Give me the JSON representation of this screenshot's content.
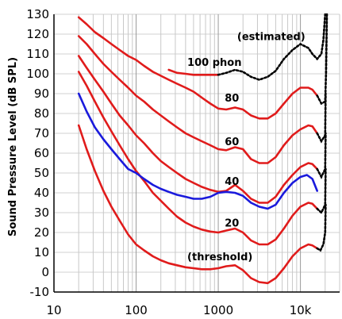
{
  "chart_data": {
    "type": "line",
    "title": "",
    "xlabel": "",
    "ylabel": "Sound Pressure Level (dB SPL)",
    "xscale": "log",
    "xlim": [
      10,
      30000
    ],
    "ylim": [
      -10,
      130
    ],
    "x_ticks": [
      10,
      100,
      1000,
      10000
    ],
    "x_tick_labels": [
      "10",
      "100",
      "1000",
      "10k"
    ],
    "y_ticks": [
      -10,
      0,
      10,
      20,
      30,
      40,
      50,
      60,
      70,
      80,
      90,
      100,
      110,
      120,
      130
    ],
    "grid": "log-x minor lines and horizontal lines every 10 dB",
    "colors": {
      "contours": "#e01b1b",
      "reference": "#1a1adc",
      "estimated": "#000000"
    },
    "series": [
      {
        "label": "(threshold)",
        "style": "solid",
        "color": "#e01b1b",
        "points": [
          [
            20,
            74
          ],
          [
            25,
            62
          ],
          [
            31.5,
            51
          ],
          [
            40,
            41
          ],
          [
            50,
            33
          ],
          [
            63,
            26
          ],
          [
            80,
            19
          ],
          [
            100,
            14
          ],
          [
            125,
            11
          ],
          [
            160,
            8
          ],
          [
            200,
            6
          ],
          [
            250,
            4.5
          ],
          [
            315,
            3.5
          ],
          [
            400,
            2.5
          ],
          [
            500,
            2
          ],
          [
            630,
            1.5
          ],
          [
            800,
            1.5
          ],
          [
            1000,
            2
          ],
          [
            1250,
            3
          ],
          [
            1600,
            3.5
          ],
          [
            2000,
            1
          ],
          [
            2500,
            -3
          ],
          [
            3150,
            -5
          ],
          [
            4000,
            -5.5
          ],
          [
            5000,
            -3
          ],
          [
            6300,
            2
          ],
          [
            8000,
            8
          ],
          [
            10000,
            12
          ],
          [
            12500,
            14
          ],
          [
            14000,
            13.5
          ],
          [
            16000,
            12
          ]
        ]
      },
      {
        "label": "20",
        "style": "solid",
        "color": "#e01b1b",
        "points": [
          [
            20,
            101
          ],
          [
            25,
            94
          ],
          [
            31.5,
            86
          ],
          [
            40,
            78
          ],
          [
            50,
            71
          ],
          [
            63,
            64
          ],
          [
            80,
            57
          ],
          [
            100,
            51
          ],
          [
            125,
            46
          ],
          [
            160,
            40
          ],
          [
            200,
            36
          ],
          [
            250,
            32
          ],
          [
            315,
            28
          ],
          [
            400,
            25
          ],
          [
            500,
            23
          ],
          [
            630,
            21.5
          ],
          [
            800,
            20.5
          ],
          [
            1000,
            20
          ],
          [
            1250,
            21
          ],
          [
            1600,
            22
          ],
          [
            2000,
            20
          ],
          [
            2500,
            16
          ],
          [
            3150,
            14
          ],
          [
            4000,
            14
          ],
          [
            5000,
            16.5
          ],
          [
            6300,
            22
          ],
          [
            8000,
            28.5
          ],
          [
            10000,
            33
          ],
          [
            12500,
            35
          ],
          [
            14000,
            34.5
          ],
          [
            16000,
            32
          ]
        ]
      },
      {
        "label": "40",
        "style": "solid",
        "color": "#e01b1b",
        "points": [
          [
            20,
            109
          ],
          [
            25,
            103
          ],
          [
            31.5,
            97
          ],
          [
            40,
            91
          ],
          [
            50,
            85
          ],
          [
            63,
            79
          ],
          [
            80,
            74
          ],
          [
            100,
            69
          ],
          [
            125,
            65
          ],
          [
            160,
            60
          ],
          [
            200,
            56
          ],
          [
            250,
            53
          ],
          [
            315,
            50
          ],
          [
            400,
            47
          ],
          [
            500,
            45
          ],
          [
            630,
            43
          ],
          [
            800,
            41.5
          ],
          [
            1000,
            40.5
          ],
          [
            1250,
            41
          ],
          [
            1600,
            44
          ],
          [
            2000,
            41
          ],
          [
            2500,
            37
          ],
          [
            3150,
            35
          ],
          [
            4000,
            35
          ],
          [
            5000,
            38
          ],
          [
            6300,
            44
          ],
          [
            8000,
            49
          ],
          [
            10000,
            53
          ],
          [
            12500,
            55
          ],
          [
            14000,
            54.5
          ],
          [
            16000,
            52
          ]
        ]
      },
      {
        "label": "60",
        "style": "solid",
        "color": "#e01b1b",
        "points": [
          [
            20,
            119
          ],
          [
            25,
            115
          ],
          [
            31.5,
            110
          ],
          [
            40,
            105
          ],
          [
            50,
            101
          ],
          [
            63,
            97
          ],
          [
            80,
            93
          ],
          [
            100,
            89
          ],
          [
            125,
            86
          ],
          [
            160,
            82
          ],
          [
            200,
            79
          ],
          [
            250,
            76
          ],
          [
            315,
            73
          ],
          [
            400,
            70
          ],
          [
            500,
            68
          ],
          [
            630,
            66
          ],
          [
            800,
            64
          ],
          [
            1000,
            62
          ],
          [
            1250,
            61.5
          ],
          [
            1600,
            63
          ],
          [
            2000,
            62
          ],
          [
            2500,
            57
          ],
          [
            3150,
            55
          ],
          [
            4000,
            55
          ],
          [
            5000,
            58
          ],
          [
            6300,
            64
          ],
          [
            8000,
            69
          ],
          [
            10000,
            72
          ],
          [
            12500,
            74
          ],
          [
            14000,
            73.5
          ],
          [
            16000,
            70
          ]
        ]
      },
      {
        "label": "80",
        "style": "solid",
        "color": "#e01b1b",
        "points": [
          [
            20,
            128.5
          ],
          [
            25,
            125
          ],
          [
            31.5,
            121
          ],
          [
            40,
            118
          ],
          [
            50,
            115
          ],
          [
            63,
            112
          ],
          [
            80,
            109
          ],
          [
            100,
            107
          ],
          [
            125,
            104
          ],
          [
            160,
            101
          ],
          [
            200,
            99
          ],
          [
            250,
            97
          ],
          [
            315,
            95
          ],
          [
            400,
            93
          ],
          [
            500,
            91
          ],
          [
            630,
            88
          ],
          [
            800,
            85
          ],
          [
            1000,
            82.5
          ],
          [
            1250,
            82
          ],
          [
            1600,
            83
          ],
          [
            2000,
            82
          ],
          [
            2500,
            79
          ],
          [
            3150,
            77.5
          ],
          [
            4000,
            77.5
          ],
          [
            5000,
            80
          ],
          [
            6300,
            85
          ],
          [
            8000,
            90
          ],
          [
            10000,
            93
          ],
          [
            12500,
            93
          ],
          [
            14000,
            92
          ],
          [
            16000,
            89
          ]
        ]
      },
      {
        "label": "100 phon",
        "style": "solid",
        "color": "#e01b1b",
        "points": [
          [
            250,
            102
          ],
          [
            315,
            100.5
          ],
          [
            400,
            100
          ],
          [
            500,
            99.5
          ],
          [
            630,
            99.5
          ],
          [
            800,
            99.5
          ],
          [
            1000,
            99.5
          ]
        ]
      },
      {
        "label": "(estimated)",
        "style": "dotted",
        "color": "#000000",
        "points": [
          [
            1000,
            99.5
          ],
          [
            1250,
            100.5
          ],
          [
            1600,
            102
          ],
          [
            2000,
            101
          ],
          [
            2500,
            98.5
          ],
          [
            3150,
            97
          ],
          [
            4000,
            98.5
          ],
          [
            5000,
            101.5
          ],
          [
            6300,
            107.5
          ],
          [
            8000,
            112
          ],
          [
            10000,
            115
          ],
          [
            12500,
            113
          ],
          [
            14000,
            110
          ],
          [
            16000,
            107.5
          ],
          [
            18000,
            110
          ],
          [
            19000,
            117
          ],
          [
            20000,
            130
          ]
        ]
      },
      {
        "label": "",
        "style": "dotted",
        "color": "#000000",
        "points": [
          [
            16000,
            89
          ],
          [
            18000,
            85
          ],
          [
            20000,
            86
          ],
          [
            20500,
            100
          ],
          [
            21000,
            130
          ]
        ]
      },
      {
        "label": "",
        "style": "dotted",
        "color": "#000000",
        "points": [
          [
            16000,
            70
          ],
          [
            18000,
            66
          ],
          [
            20000,
            69
          ],
          [
            20300,
            90
          ]
        ]
      },
      {
        "label": "",
        "style": "dotted",
        "color": "#000000",
        "points": [
          [
            16000,
            52
          ],
          [
            18000,
            48
          ],
          [
            20000,
            52
          ],
          [
            20300,
            70
          ]
        ]
      },
      {
        "label": "",
        "style": "dotted",
        "color": "#000000",
        "points": [
          [
            16000,
            32
          ],
          [
            18000,
            30
          ],
          [
            20000,
            34
          ],
          [
            20300,
            52
          ]
        ]
      },
      {
        "label": "",
        "style": "dotted",
        "color": "#000000",
        "points": [
          [
            16000,
            12
          ],
          [
            17500,
            11
          ],
          [
            19000,
            14
          ],
          [
            20000,
            20
          ],
          [
            20300,
            34
          ]
        ]
      },
      {
        "label": "",
        "style": "solid",
        "color": "#1a1adc",
        "points": [
          [
            20,
            90
          ],
          [
            25,
            81
          ],
          [
            31.5,
            73
          ],
          [
            40,
            67
          ],
          [
            50,
            62
          ],
          [
            63,
            57
          ],
          [
            80,
            52
          ],
          [
            100,
            50
          ],
          [
            125,
            47
          ],
          [
            160,
            44
          ],
          [
            200,
            42
          ],
          [
            250,
            40.5
          ],
          [
            315,
            39
          ],
          [
            400,
            38
          ],
          [
            500,
            37
          ],
          [
            630,
            37
          ],
          [
            800,
            38
          ],
          [
            1000,
            40
          ],
          [
            1250,
            40.5
          ],
          [
            1600,
            40
          ],
          [
            2000,
            38.5
          ],
          [
            2500,
            35
          ],
          [
            3150,
            33
          ],
          [
            4000,
            32
          ],
          [
            5000,
            34
          ],
          [
            6300,
            40
          ],
          [
            8000,
            45
          ],
          [
            10000,
            48
          ],
          [
            12000,
            49
          ],
          [
            14000,
            47
          ],
          [
            16000,
            41
          ]
        ]
      }
    ],
    "annotations": [
      {
        "text": "(estimated)",
        "x": 1700,
        "y": 117
      },
      {
        "text": "100 phon",
        "x": 420,
        "y": 104
      },
      {
        "text": "80",
        "x": 1200,
        "y": 86
      },
      {
        "text": "60",
        "x": 1200,
        "y": 64
      },
      {
        "text": "40",
        "x": 1200,
        "y": 44
      },
      {
        "text": "20",
        "x": 1200,
        "y": 23
      },
      {
        "text": "(threshold)",
        "x": 420,
        "y": 6
      }
    ]
  }
}
